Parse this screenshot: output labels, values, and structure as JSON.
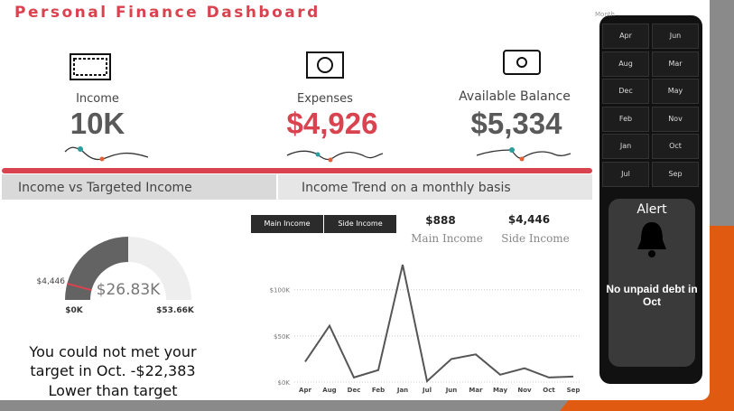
{
  "title": "Personal Finance Dashboard",
  "kpis": [
    {
      "label": "Income",
      "value": "10K"
    },
    {
      "label": "Expenses",
      "value": "$4,926"
    },
    {
      "label": "Available Balance",
      "value": "$5,334"
    }
  ],
  "tabs": [
    "Income vs Targeted Income",
    "Income Trend on a monthly basis"
  ],
  "gauge": {
    "value": 26.83,
    "value_label": "$26.83K",
    "min": 0,
    "min_label": "$0K",
    "max": 53.66,
    "max_label": "$53.66K",
    "target": 4.446,
    "target_label": "$4,446"
  },
  "message_lines": [
    "You could not met your",
    "target in Oct. -$22,383",
    "Lower than target"
  ],
  "buttons": [
    "Main Income",
    "Side Income"
  ],
  "cards": [
    {
      "value": "$888",
      "label": "Main Income"
    },
    {
      "value": "$4,446",
      "label": "Side Income"
    }
  ],
  "month_slicer": {
    "label": "Month",
    "months": [
      "Apr",
      "Jun",
      "Aug",
      "Mar",
      "Dec",
      "May",
      "Feb",
      "Nov",
      "Jan",
      "Oct",
      "Jul",
      "Sep"
    ]
  },
  "alert": {
    "title": "Alert",
    "message": "No unpaid debt in Oct"
  },
  "chart_data": {
    "type": "line",
    "categories": [
      "Apr",
      "Aug",
      "Dec",
      "Feb",
      "Jan",
      "Jul",
      "Jun",
      "Mar",
      "May",
      "Nov",
      "Oct",
      "Sep"
    ],
    "values": [
      22,
      61,
      5,
      13,
      127,
      1,
      25,
      30,
      8,
      15,
      5,
      6
    ],
    "color": "#555555",
    "ylim": [
      0,
      130
    ],
    "yticks": [
      {
        "value": 0,
        "label": "$0K"
      },
      {
        "value": 50,
        "label": "$50K"
      },
      {
        "value": 100,
        "label": "$100K"
      }
    ],
    "grid": true
  }
}
